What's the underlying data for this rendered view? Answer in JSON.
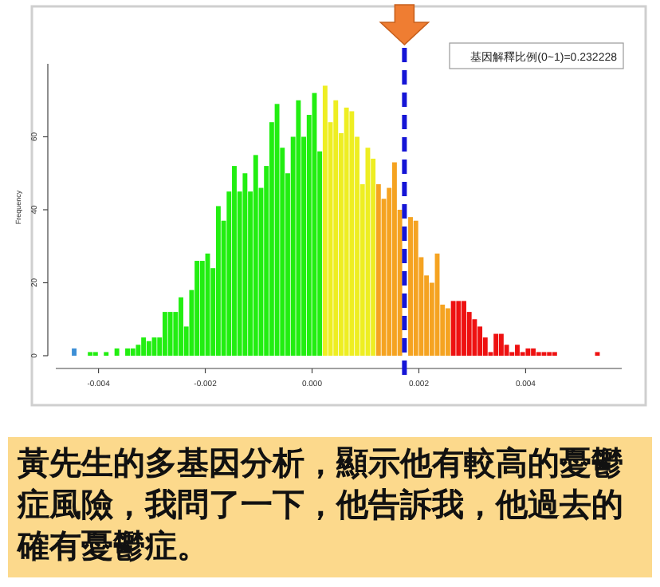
{
  "chart_data": {
    "type": "histogram",
    "ylabel": "Frequency",
    "bins": [
      -0.0045,
      -0.0044,
      -0.0043,
      -0.0042,
      -0.0041,
      -0.004,
      -0.0039,
      -0.0038,
      -0.0037,
      -0.0036,
      -0.0035,
      -0.0034,
      -0.0033,
      -0.0032,
      -0.0031,
      -0.003,
      -0.0029,
      -0.0028,
      -0.0027,
      -0.0026,
      -0.0025,
      -0.0024,
      -0.0023,
      -0.0022,
      -0.0021,
      -0.002,
      -0.0019,
      -0.0018,
      -0.0017,
      -0.0016,
      -0.0015,
      -0.0014,
      -0.0013,
      -0.0012,
      -0.0011,
      -0.001,
      -0.0009,
      -0.0008,
      -0.0007,
      -0.0006,
      -0.0005,
      -0.0004,
      -0.0003,
      -0.0002,
      -0.0001,
      0,
      0.0001,
      0.0002,
      0.0003,
      0.0004,
      0.0005,
      0.0006,
      0.0007,
      0.0008,
      0.0009,
      0.001,
      0.0011,
      0.0012,
      0.0013,
      0.0014,
      0.0015,
      0.0016,
      0.0017,
      0.0018,
      0.0019,
      0.002,
      0.0021,
      0.0022,
      0.0023,
      0.0024,
      0.0025,
      0.0026,
      0.0027,
      0.0028,
      0.0029,
      0.003,
      0.0031,
      0.0032,
      0.0033,
      0.0034,
      0.0035,
      0.0036,
      0.0037,
      0.0038,
      0.0039,
      0.004,
      0.0041,
      0.0042,
      0.0043,
      0.0044,
      0.0045,
      0.0046,
      0.0047,
      0.0048,
      0.0049,
      0.005,
      0.0051,
      0.0052,
      0.0053,
      0.0054
    ],
    "values": [
      2,
      0,
      0,
      1,
      1,
      0,
      1,
      0,
      2,
      0,
      2,
      2,
      3,
      5,
      4,
      5,
      5,
      12,
      12,
      12,
      16,
      8,
      18,
      26,
      26,
      28,
      24,
      41,
      37,
      45,
      52,
      45,
      50,
      45,
      55,
      46,
      52,
      64,
      69,
      57,
      50,
      60,
      70,
      60,
      66,
      72,
      56,
      74,
      64,
      70,
      61,
      68,
      67,
      60,
      47,
      57,
      54,
      47,
      43,
      46,
      53,
      40,
      null,
      38,
      37,
      27,
      22,
      20,
      28,
      14,
      13,
      15,
      15,
      15,
      12,
      10,
      8,
      5,
      1,
      6,
      6,
      3,
      1,
      3,
      1,
      2,
      2,
      1,
      1,
      1,
      1,
      0,
      0,
      0,
      0,
      0,
      0,
      0,
      1
    ],
    "colors": [
      "#3d8fd6",
      "#22ee11",
      "#22ee11",
      "#22ee11",
      "#22ee11",
      "#22ee11",
      "#22ee11",
      "#22ee11",
      "#22ee11",
      "#22ee11",
      "#22ee11",
      "#22ee11",
      "#22ee11",
      "#22ee11",
      "#22ee11",
      "#22ee11",
      "#22ee11",
      "#22ee11",
      "#22ee11",
      "#22ee11",
      "#22ee11",
      "#22ee11",
      "#22ee11",
      "#22ee11",
      "#22ee11",
      "#22ee11",
      "#22ee11",
      "#22ee11",
      "#22ee11",
      "#22ee11",
      "#22ee11",
      "#22ee11",
      "#22ee11",
      "#22ee11",
      "#22ee11",
      "#22ee11",
      "#22ee11",
      "#22ee11",
      "#22ee11",
      "#22ee11",
      "#22ee11",
      "#22ee11",
      "#22ee11",
      "#22ee11",
      "#22ee11",
      "#22ee11",
      "#22ee11",
      "#eeee22",
      "#eeee22",
      "#eeee22",
      "#eeee22",
      "#eeee22",
      "#eeee22",
      "#eeee22",
      "#eeee22",
      "#eeee22",
      "#eeee22",
      "#f5a321",
      "#f5a321",
      "#f5a321",
      "#f5a321",
      "#f5a321",
      null,
      "#f5a321",
      "#f5a321",
      "#f5a321",
      "#f5a321",
      "#f5a321",
      "#f5a321",
      "#f5a321",
      "#f5a321",
      "#ee1111",
      "#ee1111",
      "#ee1111",
      "#ee1111",
      "#ee1111",
      "#ee1111",
      "#ee1111",
      "#ee1111",
      "#ee1111",
      "#ee1111",
      "#ee1111",
      "#ee1111",
      "#ee1111",
      "#ee1111",
      "#ee1111",
      "#ee1111",
      "#ee1111",
      "#ee1111",
      "#ee1111",
      "#ee1111",
      "#ee1111",
      "#ee1111",
      "#ee1111",
      "#ee1111",
      "#ee1111",
      "#ee1111",
      "#ee1111",
      "#ee1111"
    ],
    "xlim": [
      -0.0048,
      0.0058
    ],
    "xticks": [
      {
        "value": -0.004,
        "label": "-0.004"
      },
      {
        "value": -0.002,
        "label": "-0.002"
      },
      {
        "value": 0,
        "label": "0.000"
      },
      {
        "value": 0.002,
        "label": "0.002"
      },
      {
        "value": 0.004,
        "label": "0.004"
      }
    ],
    "ylim": [
      0,
      80
    ],
    "yticks": [
      0,
      20,
      40,
      60
    ],
    "ref_lines": [
      {
        "axis": "x",
        "value": 0.00173,
        "color": "#1515d6",
        "line_style": "dashed"
      }
    ],
    "annotations": [
      "基因解釋比例(0~1)=0.232228",
      "黃先生的多基因分析，顯示他有較高的憂鬱症風險，我問了一下，他告訴我，他過去的確有憂鬱症。"
    ]
  }
}
